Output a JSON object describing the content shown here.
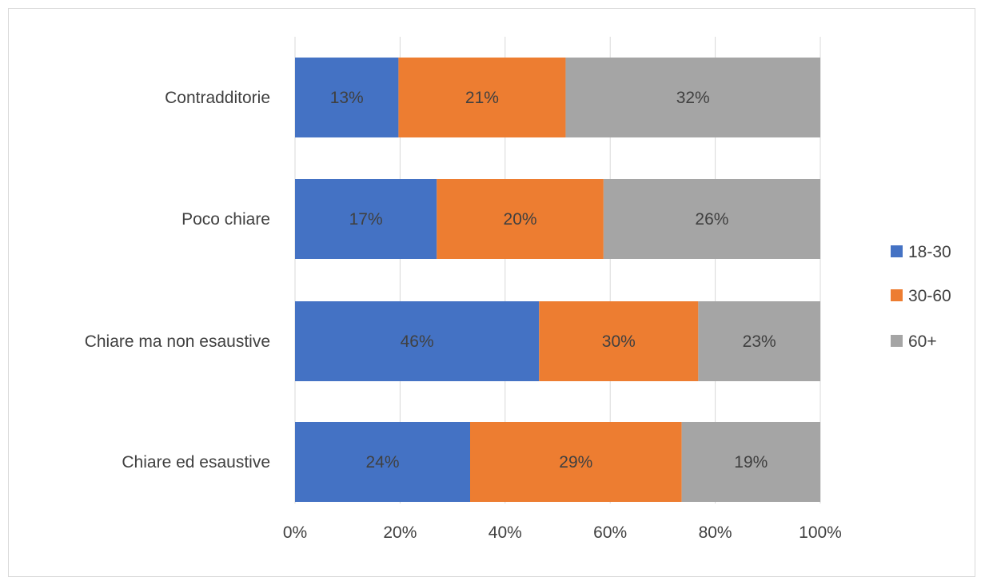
{
  "chart_data": {
    "type": "bar",
    "orientation": "horizontal",
    "stacked": "percent",
    "categories": [
      "Contradditorie",
      "Poco chiare",
      "Chiare ma non esaustive",
      "Chiare ed esaustive"
    ],
    "series": [
      {
        "name": "18-30",
        "color": "#4472c4",
        "values": [
          13,
          17,
          46,
          24
        ]
      },
      {
        "name": "30-60",
        "color": "#ed7d31",
        "values": [
          21,
          20,
          30,
          29
        ]
      },
      {
        "name": "60+",
        "color": "#a5a5a5",
        "values": [
          32,
          26,
          23,
          19
        ]
      }
    ],
    "x_ticks": [
      "0%",
      "20%",
      "40%",
      "60%",
      "80%",
      "100%"
    ],
    "xlim": [
      0,
      100
    ],
    "grid": true,
    "legend_position": "right"
  }
}
